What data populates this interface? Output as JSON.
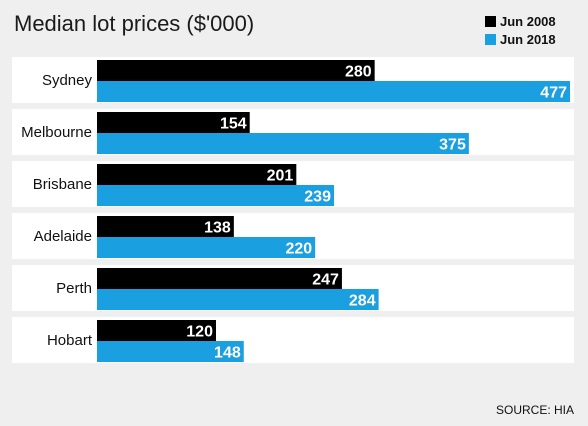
{
  "chart_data": {
    "type": "bar",
    "orientation": "horizontal",
    "title": "Median lot prices ($'000)",
    "categories": [
      "Sydney",
      "Melbourne",
      "Brisbane",
      "Adelaide",
      "Perth",
      "Hobart"
    ],
    "series": [
      {
        "name": "Jun 2008",
        "values": [
          280,
          154,
          201,
          138,
          247,
          120
        ],
        "color": "#000000"
      },
      {
        "name": "Jun 2018",
        "values": [
          477,
          375,
          239,
          220,
          284,
          148
        ],
        "color": "#1a9fe0"
      }
    ],
    "xlim": [
      0,
      477
    ],
    "legend_position": "top-right",
    "grid": false
  },
  "source": "SOURCE: HIA",
  "colors": {
    "background": "#efefef",
    "row_band": "#ffffff",
    "series_2008": "#000000",
    "series_2018": "#1a9fe0"
  }
}
